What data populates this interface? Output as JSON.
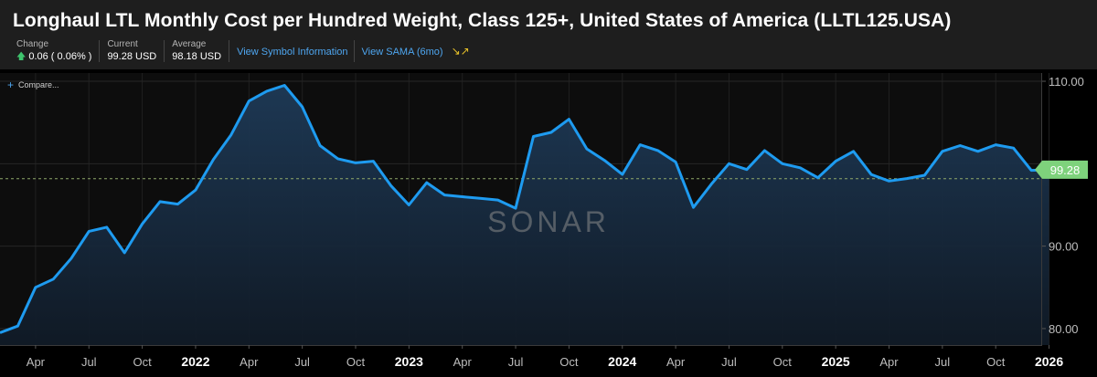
{
  "header": {
    "title": "Longhaul LTL Monthly Cost per Hundred Weight, Class 125+, United States of America (LLTL125.USA)",
    "change_label": "Change",
    "change_value": "0.06 ( 0.06% )",
    "current_label": "Current",
    "current_value": "99.28 USD",
    "average_label": "Average",
    "average_value": "98.18 USD",
    "link_symbol": "View Symbol Information",
    "link_sama": "View SAMA (6mo)",
    "up_icon": "arrow-up-icon",
    "sama_icon": "trend-icon"
  },
  "toolbar": {
    "compare_label": "Compare..."
  },
  "watermark": "SONAR",
  "colors": {
    "line": "#1e9bf0",
    "current_tag": "#7ed27c",
    "average_line": "#8fa86a",
    "up_arrow": "#3ec46d",
    "link": "#4ea6f0"
  },
  "chart_data": {
    "type": "area",
    "x_unit": "month",
    "x_start": "2021-02",
    "ylim": [
      78,
      111
    ],
    "y_ticks": [
      80,
      90,
      100,
      110
    ],
    "y_tick_labels": [
      "80.00",
      "90.00",
      "",
      "110.00"
    ],
    "x_tick_labels": [
      "Apr",
      "Jul",
      "Oct",
      "2022",
      "Apr",
      "Jul",
      "Oct",
      "2023",
      "Apr",
      "Jul",
      "Oct",
      "2024",
      "Apr",
      "Jul",
      "Oct",
      "2025",
      "Apr",
      "Jul",
      "Oct",
      "2026"
    ],
    "x_tick_months": [
      "2021-04",
      "2021-07",
      "2021-10",
      "2022-01",
      "2022-04",
      "2022-07",
      "2022-10",
      "2023-01",
      "2023-04",
      "2023-07",
      "2023-10",
      "2024-01",
      "2024-04",
      "2024-07",
      "2024-10",
      "2025-01",
      "2025-04",
      "2025-07",
      "2025-10",
      "2026-01"
    ],
    "average_value": 98.18,
    "current_value": 99.28,
    "current_label": "99.28",
    "series": [
      {
        "values": [
          79.5,
          80.3,
          85.0,
          86.0,
          88.5,
          91.8,
          92.3,
          89.2,
          92.7,
          95.4,
          95.1,
          96.8,
          100.5,
          103.5,
          107.6,
          108.8,
          109.5,
          106.9,
          102.2,
          100.6,
          100.1,
          100.3,
          97.3,
          95.0,
          97.7,
          96.2,
          96.0,
          95.8,
          95.6,
          94.6,
          103.3,
          103.8,
          105.4,
          101.8,
          100.4,
          98.7,
          102.3,
          101.6,
          100.2,
          94.7,
          97.5,
          100.0,
          99.3,
          101.6,
          100.0,
          99.5,
          98.3,
          100.3,
          101.5,
          98.7,
          97.9,
          98.2,
          98.6,
          101.5,
          102.2,
          101.5,
          102.3,
          101.9,
          99.2,
          99.28
        ]
      }
    ]
  }
}
